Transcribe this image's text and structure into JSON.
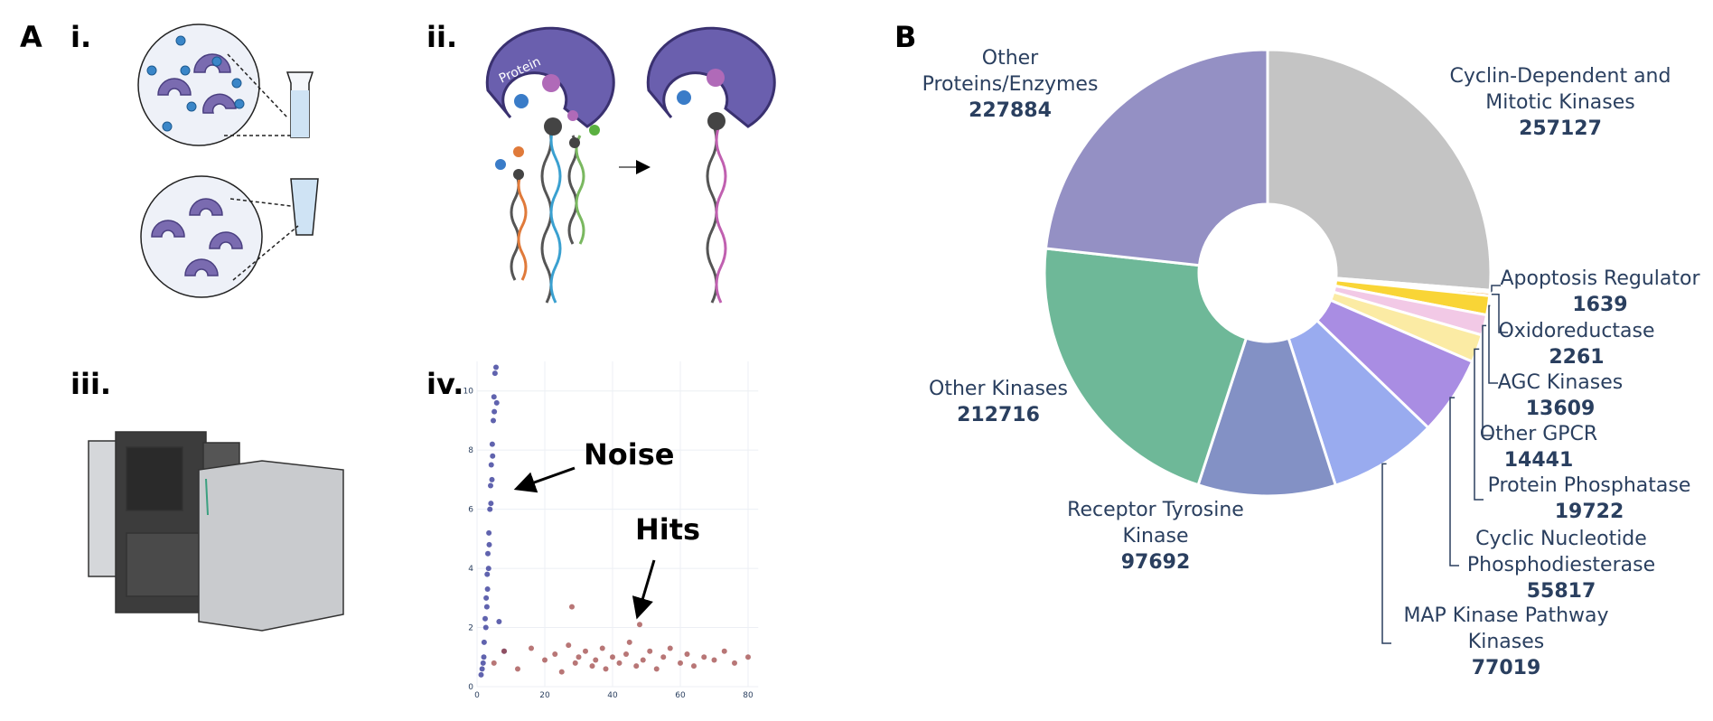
{
  "panel_labels": [
    "A",
    "i.",
    "ii.",
    "iii.",
    "iv.",
    "B"
  ],
  "illustration_text": "Protein",
  "chart_data": [
    {
      "type": "donut",
      "categories": [
        "Cyclin-Dependent and Mitotic Kinases",
        "Apoptosis Regulator",
        "Oxidoreductase",
        "AGC Kinases",
        "Other GPCR",
        "Protein Phosphatase",
        "Cyclic Nucleotide Phosphodiesterase",
        "MAP Kinase Pathway Kinases",
        "Receptor Tyrosine Kinase",
        "Other Kinases",
        "Other Proteins/Enzymes"
      ],
      "values": [
        257127,
        1639,
        2261,
        13609,
        14441,
        19722,
        55817,
        77019,
        97692,
        212716,
        227884
      ],
      "colors": [
        "#c4c4c4",
        "#e27c7c",
        "#f4a742",
        "#f9d536",
        "#f2c9e6",
        "#fbeba4",
        "#a98de3",
        "#99abef",
        "#8391c5",
        "#6eb898",
        "#9490c4"
      ]
    },
    {
      "type": "scatter",
      "xlim": [
        0,
        83
      ],
      "ylim": [
        0,
        11
      ],
      "xticks": [
        0,
        20,
        40,
        60,
        80
      ],
      "yticks": [
        0,
        2,
        4,
        6,
        8,
        10
      ],
      "grid": true,
      "annotations": [
        "Noise",
        "Hits"
      ],
      "series": [
        {
          "color": "#2b2f93",
          "x": [
            1.2,
            1.8,
            2.1,
            2.4,
            2.7,
            3.0,
            3.2,
            3.5,
            3.8,
            4.0,
            4.2,
            4.5,
            4.8,
            5.0,
            5.3,
            2.0,
            2.6,
            3.1,
            3.6,
            4.1,
            4.6,
            5.1,
            5.6,
            1.5,
            2.9,
            3.4,
            4.4,
            5.8,
            6.5,
            8.0
          ],
          "y": [
            0.4,
            0.8,
            1.5,
            2.3,
            3.0,
            3.8,
            4.5,
            5.2,
            6.0,
            6.8,
            7.5,
            8.2,
            9.0,
            9.8,
            10.6,
            1.0,
            2.0,
            3.3,
            4.8,
            6.2,
            7.8,
            9.3,
            10.8,
            0.6,
            2.7,
            4.0,
            7.0,
            9.6,
            2.2,
            1.2
          ]
        },
        {
          "color": "#a04848",
          "x": [
            5,
            8,
            12,
            16,
            20,
            23,
            25,
            27,
            29,
            30,
            32,
            34,
            35,
            37,
            38,
            40,
            42,
            44,
            45,
            47,
            49,
            51,
            53,
            55,
            57,
            60,
            62,
            64,
            67,
            70,
            73,
            76,
            80,
            28,
            48
          ],
          "y": [
            0.8,
            1.2,
            0.6,
            1.3,
            0.9,
            1.1,
            0.5,
            1.4,
            0.8,
            1.0,
            1.2,
            0.7,
            0.9,
            1.3,
            0.6,
            1.0,
            0.8,
            1.1,
            1.5,
            0.7,
            0.9,
            1.2,
            0.6,
            1.0,
            1.3,
            0.8,
            1.1,
            0.7,
            1.0,
            0.9,
            1.2,
            0.8,
            1.0,
            2.7,
            2.1
          ]
        }
      ]
    }
  ]
}
